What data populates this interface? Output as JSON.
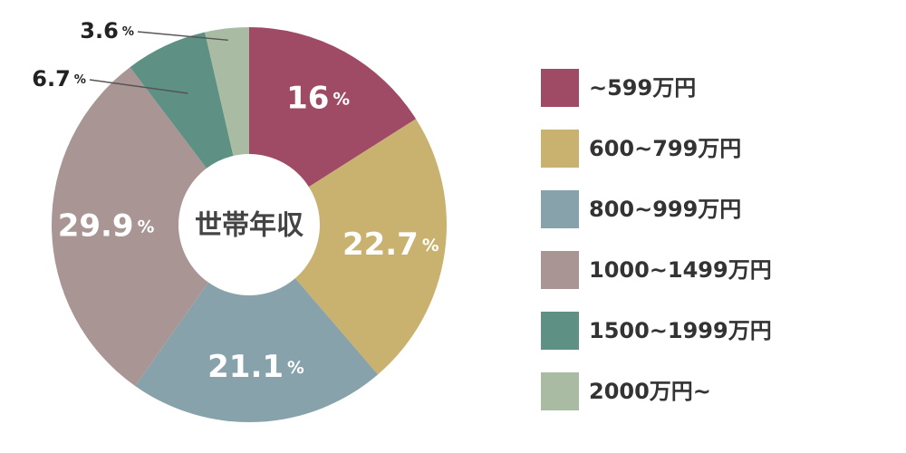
{
  "chart_data": {
    "type": "donut",
    "center_label": "世帯年収",
    "unit": "%",
    "categories": [
      "~599万円",
      "600~799万円",
      "800~999万円",
      "1000~1499万円",
      "1500~1999万円",
      "2000万円~"
    ],
    "values": [
      16,
      22.7,
      21.1,
      29.9,
      6.7,
      3.6
    ],
    "colors": [
      "#a04b66",
      "#c9b26f",
      "#88a2ab",
      "#a99594",
      "#5e9083",
      "#a9bca3"
    ],
    "legend": "right"
  }
}
